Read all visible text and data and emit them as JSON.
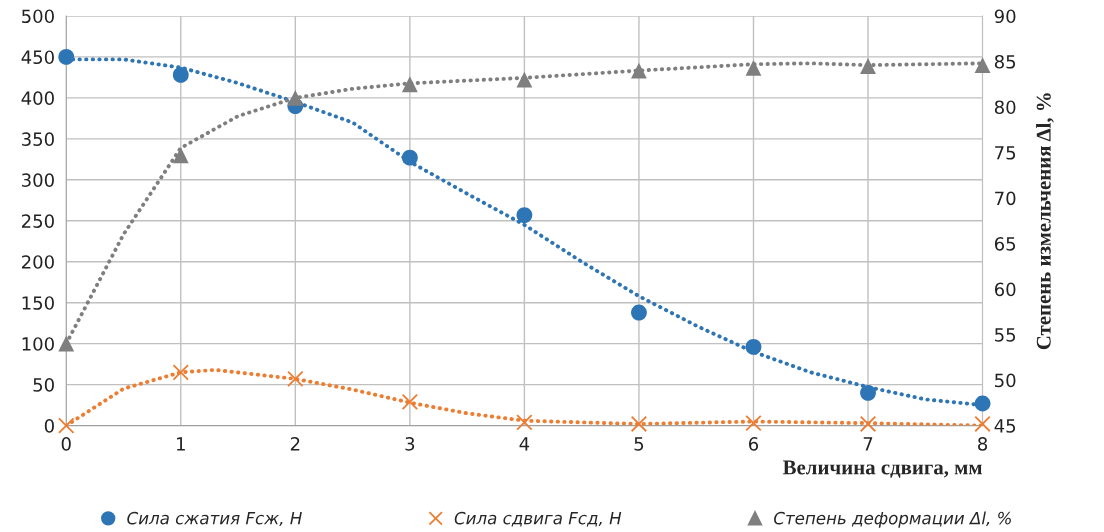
{
  "chart_data": {
    "type": "scatter",
    "xlabel": "Величина сдвига, мм",
    "y2label": "Степень измельчения Δl, %",
    "xlim": [
      0,
      8
    ],
    "xticks": [
      0,
      1,
      2,
      3,
      4,
      5,
      6,
      7,
      8
    ],
    "ylim": [
      0,
      500
    ],
    "yticks": [
      0,
      50,
      100,
      150,
      200,
      250,
      300,
      350,
      400,
      450,
      500
    ],
    "y2lim": [
      45,
      90
    ],
    "y2ticks": [
      45,
      50,
      55,
      60,
      65,
      70,
      75,
      80,
      85,
      90
    ],
    "grid": true,
    "legend": "bottom",
    "series": [
      {
        "name": "Сила сжатия Fсж, Н",
        "marker": "circle",
        "color": "#2e75b6",
        "x": [
          0,
          1,
          2,
          3,
          4,
          5,
          6,
          7,
          8
        ],
        "values": [
          450,
          428,
          390,
          327,
          257,
          138,
          96,
          40,
          27
        ]
      },
      {
        "name": "Сила сдвига Fсд, Н",
        "marker": "cross",
        "color": "#ed7d31",
        "x": [
          0,
          1,
          2,
          3,
          4,
          5,
          6,
          7,
          8
        ],
        "values": [
          0,
          65,
          57,
          29,
          4,
          2,
          3,
          2,
          2
        ]
      },
      {
        "name": "Степень деформации Δl, %",
        "marker": "triangle",
        "axis": "y2",
        "color": "#7f7f7f",
        "x": [
          0,
          1,
          2,
          3,
          4,
          5,
          6,
          7,
          8
        ],
        "values": [
          54,
          74.7,
          81,
          82.5,
          83,
          84,
          84.3,
          84.5,
          84.6
        ]
      },
      {
        "type": "line",
        "line_style": "dotted",
        "color": "#2e75b6",
        "x": [
          0,
          0.5,
          1,
          1.5,
          2,
          2.5,
          3,
          3.5,
          4,
          4.5,
          5,
          5.5,
          6,
          6.5,
          7,
          7.5,
          8
        ],
        "values": [
          447,
          447,
          437,
          418,
          395,
          370,
          322,
          283,
          245,
          200,
          158,
          122,
          90,
          65,
          47,
          32,
          25
        ]
      },
      {
        "type": "line",
        "line_style": "dotted",
        "color": "#ed7d31",
        "x": [
          0,
          0.5,
          1,
          1.3,
          2,
          2.5,
          3,
          3.5,
          4,
          5,
          6,
          7,
          8
        ],
        "values": [
          0,
          45,
          65,
          68,
          57,
          44,
          28,
          15,
          6,
          2,
          5,
          3,
          0
        ]
      },
      {
        "type": "line",
        "line_style": "dotted",
        "axis": "y2",
        "color": "#7f7f7f",
        "x": [
          0,
          0.5,
          1,
          1.5,
          2,
          2.5,
          3,
          4,
          5,
          6,
          6.5,
          7,
          8
        ],
        "values": [
          54,
          66,
          75.5,
          79,
          81,
          82,
          82.6,
          83.2,
          84,
          84.7,
          84.8,
          84.6,
          84.8
        ]
      }
    ]
  }
}
